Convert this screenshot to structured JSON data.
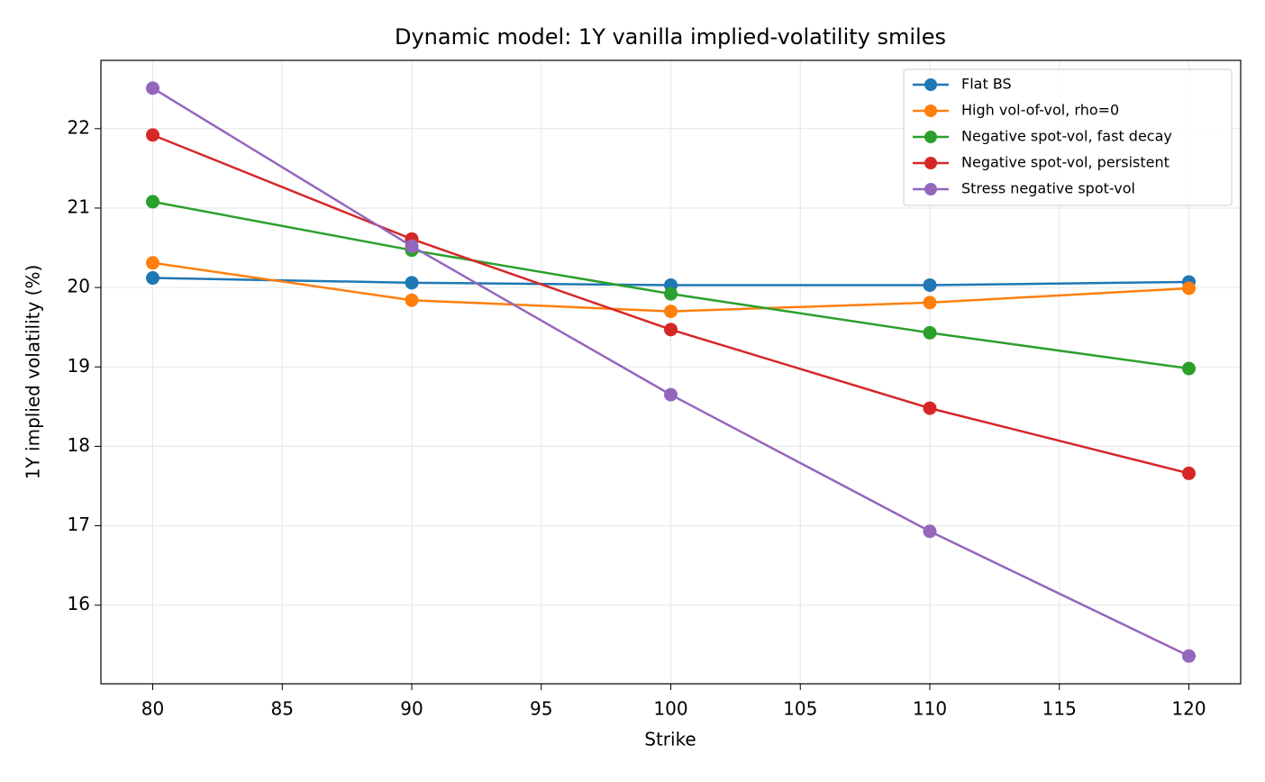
{
  "chart_data": {
    "type": "line",
    "title": "Dynamic model: 1Y vanilla implied-volatility smiles",
    "xlabel": "Strike",
    "ylabel": "1Y implied volatility (%)",
    "x": [
      80,
      90,
      100,
      110,
      120
    ],
    "series": [
      {
        "name": "Flat BS",
        "color": "#1f77b4",
        "values": [
          20.12,
          20.06,
          20.03,
          20.03,
          20.07
        ]
      },
      {
        "name": "High vol-of-vol, rho=0",
        "color": "#ff7f0e",
        "values": [
          20.31,
          19.84,
          19.7,
          19.81,
          19.99
        ]
      },
      {
        "name": "Negative spot-vol, fast decay",
        "color": "#2ca02c",
        "values": [
          21.08,
          20.47,
          19.92,
          19.43,
          18.98
        ]
      },
      {
        "name": "Negative spot-vol, persistent",
        "color": "#d62728",
        "values": [
          21.92,
          20.61,
          19.47,
          18.48,
          17.66
        ]
      },
      {
        "name": "Stress negative spot-vol",
        "color": "#9467bd",
        "values": [
          22.51,
          20.52,
          18.65,
          16.93,
          15.36
        ]
      }
    ],
    "xlim": [
      78,
      122
    ],
    "xticks": [
      80,
      85,
      90,
      95,
      100,
      105,
      110,
      115,
      120
    ],
    "ylim": [
      15.01,
      22.86
    ],
    "yticks": [
      16,
      17,
      18,
      19,
      20,
      21,
      22
    ],
    "grid": true,
    "legend": "upper right"
  }
}
